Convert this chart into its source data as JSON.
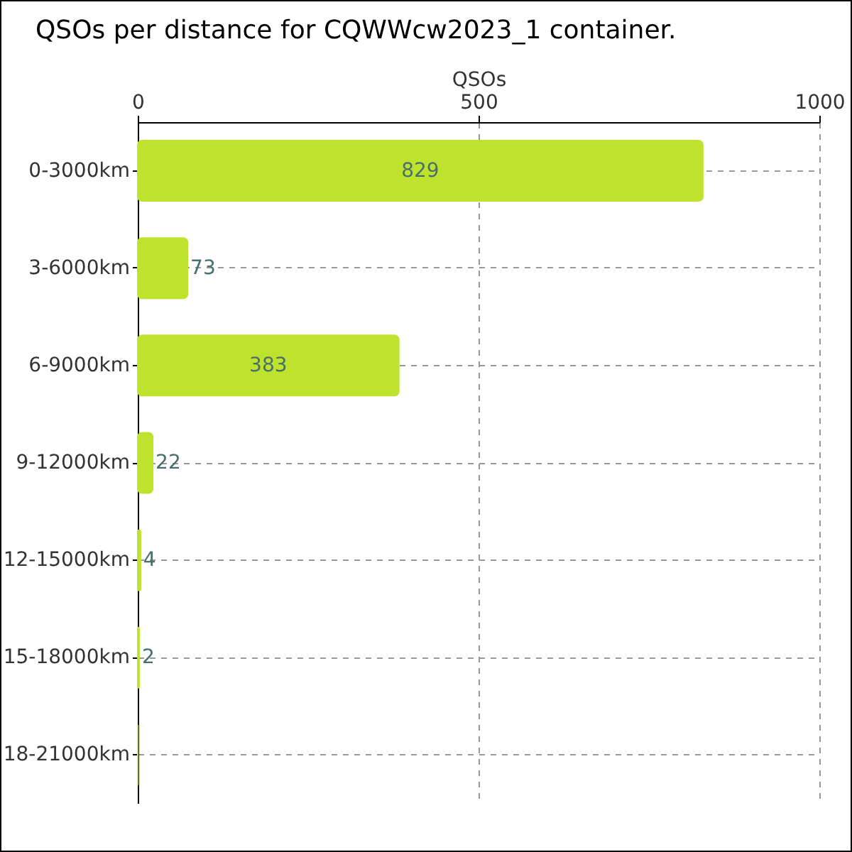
{
  "chart_data": {
    "type": "bar",
    "orientation": "horizontal",
    "title": "QSOs per distance for CQWWcw2023_1 container.",
    "xlabel": "QSOs",
    "categories": [
      "0-3000km",
      "3-6000km",
      "6-9000km",
      "9-12000km",
      "12-15000km",
      "15-18000km",
      "18-21000km"
    ],
    "series": [
      {
        "color": "#bee32e",
        "values": [
          829,
          73,
          383,
          22,
          4,
          2,
          0
        ]
      }
    ],
    "value_labels": [
      "829",
      "73",
      "383",
      "22",
      "4",
      "2",
      null
    ],
    "xlim": [
      0,
      1000
    ],
    "xticks": [
      0,
      500,
      1000
    ],
    "grid": true
  }
}
